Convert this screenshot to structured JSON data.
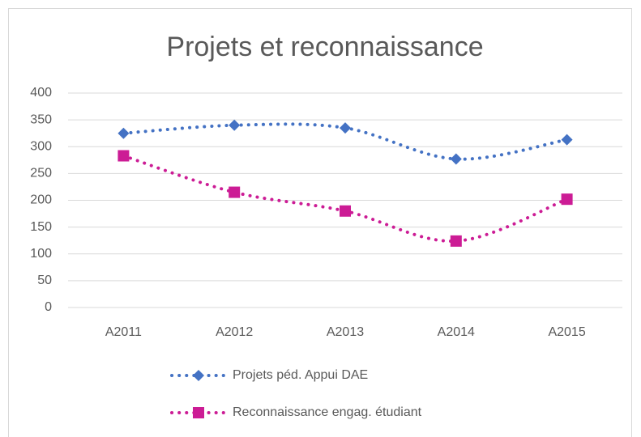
{
  "chart_data": {
    "type": "line",
    "title": "Projets et reconnaissance",
    "categories": [
      "A2011",
      "A2012",
      "A2013",
      "A2014",
      "A2015"
    ],
    "series": [
      {
        "name": "Projets péd. Appui DAE",
        "color": "#4472c4",
        "marker": "diamond",
        "values": [
          325,
          340,
          335,
          277,
          313
        ]
      },
      {
        "name": "Reconnaissance  engag. étudiant",
        "color": "#cc1c95",
        "marker": "square",
        "values": [
          283,
          215,
          180,
          124,
          202
        ]
      }
    ],
    "ylim": [
      0,
      400
    ],
    "yticks": [
      0,
      50,
      100,
      150,
      200,
      250,
      300,
      350,
      400
    ],
    "grid": true,
    "legend": "bottom"
  }
}
